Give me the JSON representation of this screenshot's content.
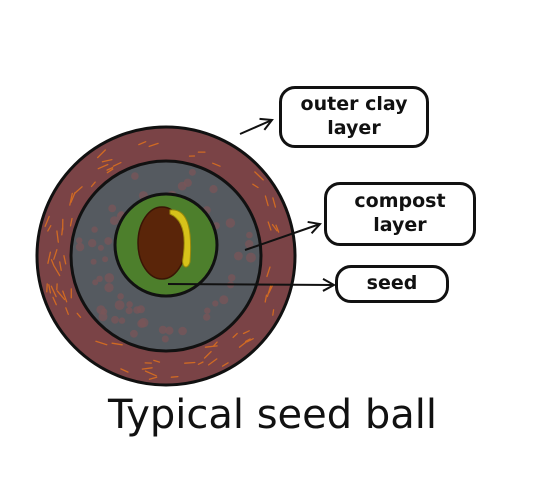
{
  "labels": {
    "outer_clay": "outer clay\nlayer",
    "compost": "compost\nlayer",
    "seed": "seed"
  },
  "caption": "Typical seed ball",
  "colors": {
    "outer_clay": "#7a4346",
    "compost": "#555a60",
    "inner_green": "#4d7f2c",
    "seed": "#5a2509",
    "sprout": "#d7c21a",
    "clay_fibers": "#d06a23",
    "compost_specks": "#7a5558"
  }
}
